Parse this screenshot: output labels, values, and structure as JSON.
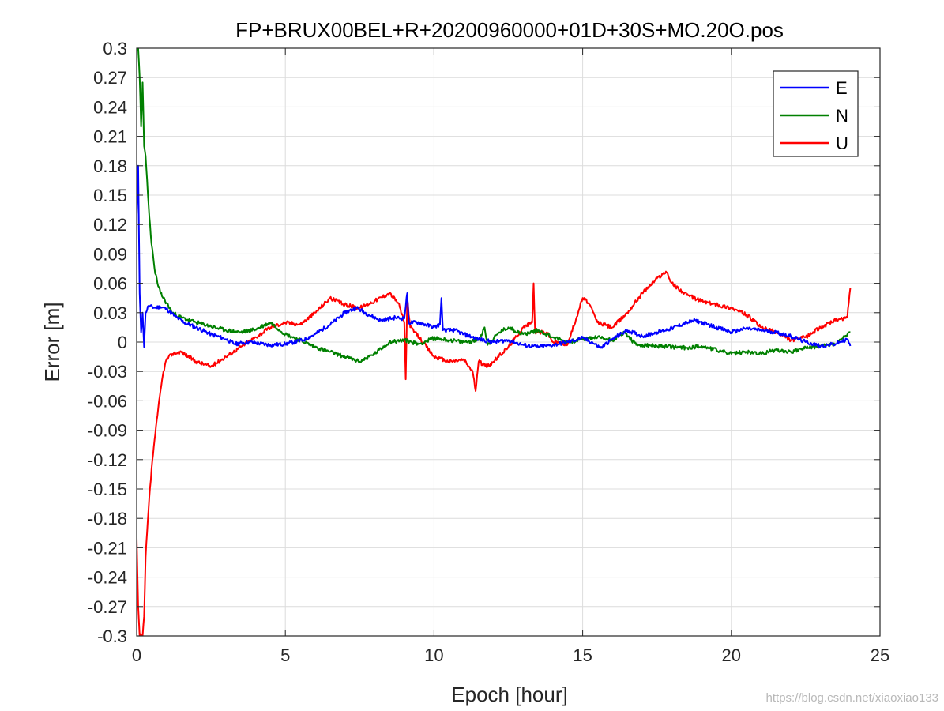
{
  "watermark": "https://blog.csdn.net/xiaoxiao133",
  "chart_data": {
    "type": "line",
    "title": "FP+BRUX00BEL+R+20200960000+01D+30S+MO.20O.pos",
    "xlabel": "Epoch [hour]",
    "ylabel": "Error [m]",
    "xlim": [
      0,
      25
    ],
    "ylim": [
      -0.3,
      0.3
    ],
    "xticks": [
      0,
      5,
      10,
      15,
      20,
      25
    ],
    "yticks": [
      -0.3,
      -0.27,
      -0.24,
      -0.21,
      -0.18,
      -0.15,
      -0.12,
      -0.09,
      -0.06,
      -0.03,
      0,
      0.03,
      0.06,
      0.09,
      0.12,
      0.15,
      0.18,
      0.21,
      0.24,
      0.27,
      0.3
    ],
    "xtick_labels": [
      "0",
      "5",
      "10",
      "15",
      "20",
      "25"
    ],
    "ytick_labels": [
      "-0.3",
      "-0.27",
      "-0.24",
      "-0.21",
      "-0.18",
      "-0.15",
      "-0.12",
      "-0.09",
      "-0.06",
      "-0.03",
      "0",
      "0.03",
      "0.06",
      "0.09",
      "0.12",
      "0.15",
      "0.18",
      "0.21",
      "0.24",
      "0.27",
      "0.3"
    ],
    "grid": true,
    "legend_position": "top-right",
    "series": [
      {
        "name": "E",
        "color": "#0000ff",
        "points": [
          [
            0,
            0.13
          ],
          [
            0.05,
            0.18
          ],
          [
            0.1,
            0.05
          ],
          [
            0.15,
            0.01
          ],
          [
            0.2,
            0.03
          ],
          [
            0.25,
            -0.005
          ],
          [
            0.3,
            0.03
          ],
          [
            0.4,
            0.037
          ],
          [
            0.6,
            0.035
          ],
          [
            0.8,
            0.036
          ],
          [
            1.0,
            0.034
          ],
          [
            1.3,
            0.026
          ],
          [
            1.6,
            0.02
          ],
          [
            2.0,
            0.015
          ],
          [
            2.5,
            0.008
          ],
          [
            3.0,
            0.003
          ],
          [
            3.3,
            -0.002
          ],
          [
            3.8,
            0.0
          ],
          [
            4.5,
            -0.003
          ],
          [
            5.0,
            -0.002
          ],
          [
            5.6,
            0.002
          ],
          [
            6.0,
            0.008
          ],
          [
            6.6,
            0.02
          ],
          [
            7.0,
            0.03
          ],
          [
            7.4,
            0.035
          ],
          [
            7.8,
            0.028
          ],
          [
            8.2,
            0.022
          ],
          [
            8.7,
            0.025
          ],
          [
            9.0,
            0.024
          ],
          [
            9.1,
            0.05
          ],
          [
            9.15,
            0.02
          ],
          [
            9.5,
            0.02
          ],
          [
            10.0,
            0.015
          ],
          [
            10.2,
            0.018
          ],
          [
            10.25,
            0.045
          ],
          [
            10.3,
            0.012
          ],
          [
            10.7,
            0.012
          ],
          [
            11.0,
            0.008
          ],
          [
            11.5,
            0.003
          ],
          [
            12.0,
            0.0
          ],
          [
            12.5,
            0.002
          ],
          [
            13.0,
            -0.003
          ],
          [
            13.5,
            -0.005
          ],
          [
            14.0,
            -0.003
          ],
          [
            14.5,
            0.0
          ],
          [
            15.0,
            0.004
          ],
          [
            15.3,
            0.0
          ],
          [
            15.6,
            -0.006
          ],
          [
            16.0,
            0.003
          ],
          [
            16.5,
            0.012
          ],
          [
            17.0,
            0.006
          ],
          [
            17.5,
            0.01
          ],
          [
            18.0,
            0.014
          ],
          [
            18.5,
            0.02
          ],
          [
            18.8,
            0.022
          ],
          [
            19.2,
            0.018
          ],
          [
            19.6,
            0.014
          ],
          [
            20.0,
            0.01
          ],
          [
            20.5,
            0.014
          ],
          [
            21.0,
            0.012
          ],
          [
            21.5,
            0.01
          ],
          [
            22.0,
            0.006
          ],
          [
            22.5,
            0.0
          ],
          [
            23.0,
            -0.004
          ],
          [
            23.5,
            -0.002
          ],
          [
            23.9,
            0.003
          ],
          [
            24.0,
            -0.004
          ]
        ]
      },
      {
        "name": "N",
        "color": "#008000",
        "points": [
          [
            0,
            0.3
          ],
          [
            0.05,
            0.3
          ],
          [
            0.1,
            0.27
          ],
          [
            0.15,
            0.22
          ],
          [
            0.2,
            0.265
          ],
          [
            0.25,
            0.2
          ],
          [
            0.3,
            0.19
          ],
          [
            0.4,
            0.14
          ],
          [
            0.5,
            0.1
          ],
          [
            0.6,
            0.075
          ],
          [
            0.7,
            0.06
          ],
          [
            0.8,
            0.05
          ],
          [
            1.0,
            0.04
          ],
          [
            1.2,
            0.03
          ],
          [
            1.5,
            0.025
          ],
          [
            2.0,
            0.02
          ],
          [
            2.5,
            0.016
          ],
          [
            3.0,
            0.012
          ],
          [
            3.5,
            0.01
          ],
          [
            4.0,
            0.013
          ],
          [
            4.5,
            0.02
          ],
          [
            5.0,
            0.008
          ],
          [
            5.5,
            0.002
          ],
          [
            6.0,
            -0.005
          ],
          [
            6.5,
            -0.01
          ],
          [
            7.0,
            -0.015
          ],
          [
            7.5,
            -0.02
          ],
          [
            8.0,
            -0.012
          ],
          [
            8.5,
            0.0
          ],
          [
            9.0,
            0.002
          ],
          [
            9.5,
            -0.002
          ],
          [
            10.0,
            0.004
          ],
          [
            10.5,
            0.002
          ],
          [
            11.0,
            0.0
          ],
          [
            11.5,
            0.002
          ],
          [
            11.7,
            0.015
          ],
          [
            11.8,
            -0.003
          ],
          [
            12.2,
            0.01
          ],
          [
            12.5,
            0.015
          ],
          [
            13.0,
            0.008
          ],
          [
            13.5,
            0.012
          ],
          [
            14.0,
            0.005
          ],
          [
            14.5,
            0.0
          ],
          [
            15.0,
            0.003
          ],
          [
            15.5,
            0.005
          ],
          [
            16.0,
            0.002
          ],
          [
            16.4,
            0.01
          ],
          [
            16.8,
            -0.003
          ],
          [
            17.5,
            -0.004
          ],
          [
            18.0,
            -0.005
          ],
          [
            18.5,
            -0.006
          ],
          [
            19.0,
            -0.004
          ],
          [
            19.5,
            -0.008
          ],
          [
            20.0,
            -0.012
          ],
          [
            20.5,
            -0.01
          ],
          [
            21.0,
            -0.012
          ],
          [
            21.5,
            -0.008
          ],
          [
            22.0,
            -0.01
          ],
          [
            22.5,
            -0.006
          ],
          [
            23.0,
            -0.004
          ],
          [
            23.5,
            -0.002
          ],
          [
            24.0,
            0.01
          ]
        ]
      },
      {
        "name": "U",
        "color": "#ff0000",
        "points": [
          [
            0,
            -0.2
          ],
          [
            0.05,
            -0.27
          ],
          [
            0.1,
            -0.3
          ],
          [
            0.15,
            -0.3
          ],
          [
            0.2,
            -0.3
          ],
          [
            0.25,
            -0.28
          ],
          [
            0.3,
            -0.22
          ],
          [
            0.4,
            -0.17
          ],
          [
            0.5,
            -0.13
          ],
          [
            0.6,
            -0.1
          ],
          [
            0.7,
            -0.075
          ],
          [
            0.8,
            -0.05
          ],
          [
            0.9,
            -0.03
          ],
          [
            1.0,
            -0.018
          ],
          [
            1.2,
            -0.012
          ],
          [
            1.5,
            -0.01
          ],
          [
            2.0,
            -0.02
          ],
          [
            2.5,
            -0.025
          ],
          [
            3.0,
            -0.015
          ],
          [
            3.5,
            -0.005
          ],
          [
            4.0,
            0.005
          ],
          [
            4.5,
            0.015
          ],
          [
            5.0,
            0.02
          ],
          [
            5.5,
            0.018
          ],
          [
            6.0,
            0.03
          ],
          [
            6.5,
            0.045
          ],
          [
            7.0,
            0.038
          ],
          [
            7.5,
            0.035
          ],
          [
            8.0,
            0.042
          ],
          [
            8.5,
            0.05
          ],
          [
            8.8,
            0.04
          ],
          [
            9.0,
            0.02
          ],
          [
            9.05,
            -0.038
          ],
          [
            9.1,
            0.045
          ],
          [
            9.2,
            0.015
          ],
          [
            9.5,
            0.005
          ],
          [
            10.0,
            -0.015
          ],
          [
            10.5,
            -0.02
          ],
          [
            11.0,
            -0.018
          ],
          [
            11.3,
            -0.03
          ],
          [
            11.4,
            -0.05
          ],
          [
            11.5,
            -0.02
          ],
          [
            11.8,
            -0.025
          ],
          [
            12.0,
            -0.02
          ],
          [
            12.5,
            -0.005
          ],
          [
            13.0,
            0.015
          ],
          [
            13.3,
            0.02
          ],
          [
            13.35,
            0.06
          ],
          [
            13.4,
            0.01
          ],
          [
            13.8,
            0.01
          ],
          [
            14.0,
            0.0
          ],
          [
            14.5,
            -0.002
          ],
          [
            15.0,
            0.045
          ],
          [
            15.2,
            0.04
          ],
          [
            15.5,
            0.02
          ],
          [
            16.0,
            0.015
          ],
          [
            16.5,
            0.03
          ],
          [
            17.0,
            0.05
          ],
          [
            17.5,
            0.065
          ],
          [
            17.8,
            0.072
          ],
          [
            18.0,
            0.06
          ],
          [
            18.5,
            0.048
          ],
          [
            19.0,
            0.042
          ],
          [
            19.5,
            0.038
          ],
          [
            20.0,
            0.035
          ],
          [
            20.5,
            0.028
          ],
          [
            21.0,
            0.015
          ],
          [
            21.5,
            0.01
          ],
          [
            22.0,
            0.002
          ],
          [
            22.5,
            0.005
          ],
          [
            23.0,
            0.015
          ],
          [
            23.5,
            0.022
          ],
          [
            23.9,
            0.025
          ],
          [
            24.0,
            0.055
          ]
        ]
      }
    ]
  }
}
